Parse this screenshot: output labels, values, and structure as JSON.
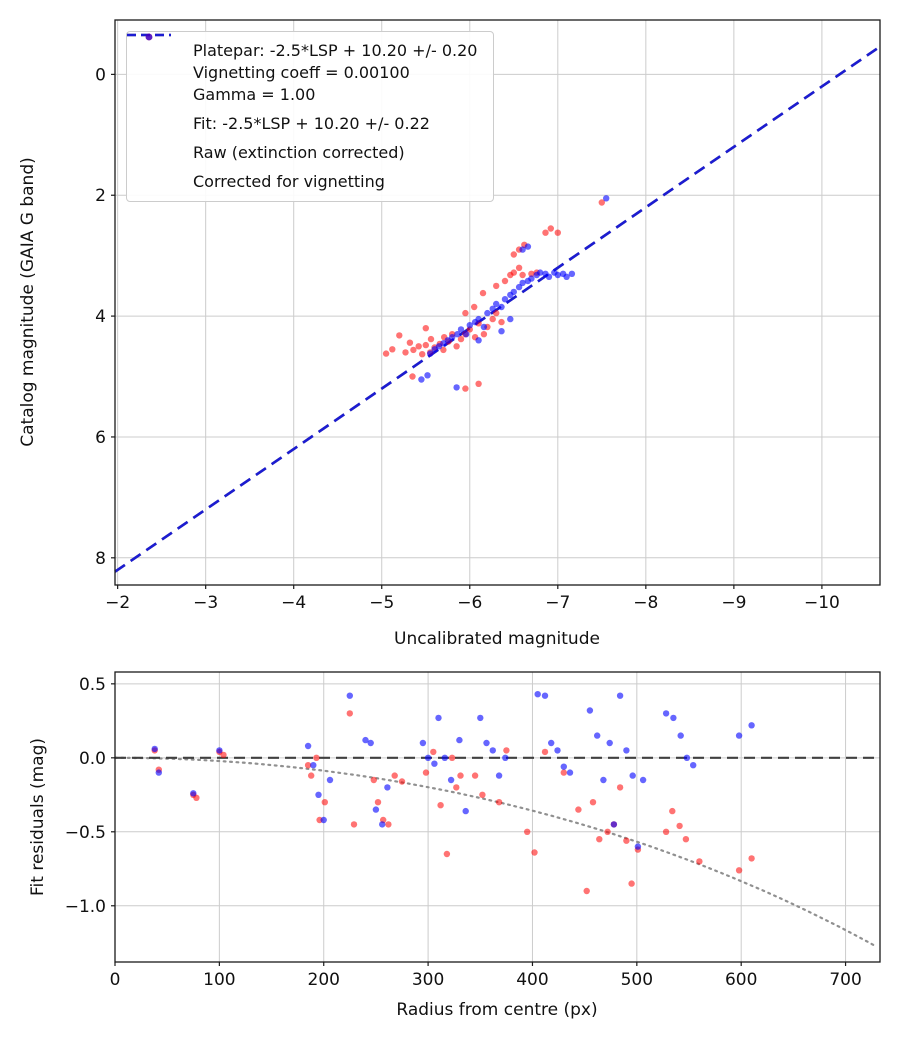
{
  "chart_data": [
    {
      "type": "scatter",
      "xlabel": "Uncalibrated magnitude",
      "ylabel": "Catalog magnitude (GAIA G band)",
      "xlim": [
        -1.97,
        -10.66
      ],
      "ylim": [
        -0.9,
        8.45
      ],
      "xticks": [
        -2,
        -3,
        -4,
        -5,
        -6,
        -7,
        -8,
        -9,
        -10
      ],
      "xtick_labels": [
        "−2",
        "−3",
        "−4",
        "−5",
        "−6",
        "−7",
        "−8",
        "−9",
        "−10"
      ],
      "yticks": [
        0,
        2,
        4,
        6,
        8
      ],
      "ytick_labels": [
        "0",
        "2",
        "4",
        "6",
        "8"
      ],
      "grid": true,
      "legend_position": "upper left",
      "platepar_line": {
        "slope": 1,
        "intercept": 10.2,
        "color": "#7f7f7f",
        "label_line1": "Platepar: -2.5*LSP + 10.20 +/- 0.20",
        "label_line2": "Vignetting coeff = 0.00100",
        "label_line3": "Gamma = 1.00"
      },
      "fit_line": {
        "slope": 1,
        "intercept": 10.2,
        "color": "#1c1cd1",
        "label": "Fit: -2.5*LSP + 10.20 +/- 0.22"
      },
      "series": [
        {
          "name": "Raw (extinction corrected)",
          "color": "#ff0000",
          "alpha": 0.55,
          "points": [
            [
              -5.05,
              4.62
            ],
            [
              -5.12,
              4.55
            ],
            [
              -5.2,
              4.32
            ],
            [
              -5.27,
              4.6
            ],
            [
              -5.32,
              4.44
            ],
            [
              -5.36,
              4.56
            ],
            [
              -5.42,
              4.5
            ],
            [
              -5.46,
              4.63
            ],
            [
              -5.5,
              4.48
            ],
            [
              -5.5,
              4.2
            ],
            [
              -5.55,
              4.6
            ],
            [
              -5.56,
              4.38
            ],
            [
              -5.6,
              4.52
            ],
            [
              -5.66,
              4.46
            ],
            [
              -5.7,
              4.56
            ],
            [
              -5.71,
              4.35
            ],
            [
              -5.76,
              4.42
            ],
            [
              -5.8,
              4.3
            ],
            [
              -5.85,
              4.5
            ],
            [
              -5.9,
              4.38
            ],
            [
              -5.35,
              5.0
            ],
            [
              -5.95,
              4.3
            ],
            [
              -6.0,
              4.22
            ],
            [
              -6.06,
              4.35
            ],
            [
              -6.1,
              4.12
            ],
            [
              -6.16,
              4.3
            ],
            [
              -5.95,
              3.95
            ],
            [
              -6.05,
              3.85
            ],
            [
              -6.2,
              4.18
            ],
            [
              -6.26,
              4.05
            ],
            [
              -6.3,
              3.95
            ],
            [
              -6.36,
              4.1
            ],
            [
              -6.15,
              3.62
            ],
            [
              -6.3,
              3.5
            ],
            [
              -6.4,
              3.42
            ],
            [
              -6.46,
              3.32
            ],
            [
              -6.5,
              3.28
            ],
            [
              -6.56,
              3.2
            ],
            [
              -6.6,
              3.32
            ],
            [
              -6.5,
              2.98
            ],
            [
              -6.56,
              2.9
            ],
            [
              -6.62,
              2.82
            ],
            [
              -6.7,
              3.3
            ],
            [
              -6.76,
              3.28
            ],
            [
              -6.86,
              2.62
            ],
            [
              -6.92,
              2.55
            ],
            [
              -7.0,
              2.62
            ],
            [
              -7.5,
              2.12
            ],
            [
              -5.95,
              5.2
            ],
            [
              -6.1,
              5.12
            ]
          ]
        },
        {
          "name": "Corrected for vignetting",
          "color": "#0000ff",
          "alpha": 0.6,
          "points": [
            [
              -5.45,
              5.05
            ],
            [
              -5.52,
              4.98
            ],
            [
              -5.55,
              4.62
            ],
            [
              -5.6,
              4.55
            ],
            [
              -5.65,
              4.5
            ],
            [
              -5.7,
              4.45
            ],
            [
              -5.75,
              4.4
            ],
            [
              -5.8,
              4.35
            ],
            [
              -5.86,
              4.3
            ],
            [
              -5.9,
              4.22
            ],
            [
              -5.96,
              4.3
            ],
            [
              -6.0,
              4.15
            ],
            [
              -6.06,
              4.1
            ],
            [
              -6.1,
              4.05
            ],
            [
              -6.16,
              4.18
            ],
            [
              -6.2,
              3.95
            ],
            [
              -6.26,
              3.88
            ],
            [
              -6.3,
              3.8
            ],
            [
              -6.36,
              3.85
            ],
            [
              -6.4,
              3.72
            ],
            [
              -6.46,
              3.65
            ],
            [
              -6.5,
              3.6
            ],
            [
              -6.56,
              3.52
            ],
            [
              -6.6,
              3.45
            ],
            [
              -6.6,
              2.9
            ],
            [
              -6.66,
              2.85
            ],
            [
              -6.66,
              3.42
            ],
            [
              -6.7,
              3.38
            ],
            [
              -6.76,
              3.32
            ],
            [
              -6.8,
              3.28
            ],
            [
              -6.86,
              3.3
            ],
            [
              -6.9,
              3.35
            ],
            [
              -6.96,
              3.28
            ],
            [
              -7.0,
              3.32
            ],
            [
              -7.06,
              3.3
            ],
            [
              -7.1,
              3.35
            ],
            [
              -7.16,
              3.3
            ],
            [
              -6.1,
              4.4
            ],
            [
              -5.85,
              5.18
            ],
            [
              -7.55,
              2.05
            ],
            [
              -6.36,
              4.25
            ],
            [
              -6.46,
              4.05
            ]
          ]
        }
      ]
    },
    {
      "type": "scatter",
      "xlabel": "Radius from centre (px)",
      "ylabel": "Fit residuals (mag)",
      "xlim": [
        0,
        733
      ],
      "ylim": [
        0.58,
        -1.38
      ],
      "xticks": [
        0,
        100,
        200,
        300,
        400,
        500,
        600,
        700
      ],
      "xtick_labels": [
        "0",
        "100",
        "200",
        "300",
        "400",
        "500",
        "600",
        "700"
      ],
      "yticks": [
        0.5,
        0.0,
        -0.5,
        -1.0
      ],
      "ytick_labels": [
        "0.5",
        "0.0",
        "−0.5",
        "−1.0"
      ],
      "grid": true,
      "zero_line": {
        "y": 0,
        "color": "#404040"
      },
      "vignetting_curve": {
        "coeff": 0.001,
        "color": "#909090"
      },
      "series": [
        {
          "name": "Raw (extinction corrected)",
          "color": "#ff0000",
          "alpha": 0.55,
          "points": [
            [
              38,
              0.05
            ],
            [
              42,
              -0.08
            ],
            [
              75,
              -0.25
            ],
            [
              78,
              -0.27
            ],
            [
              100,
              0.04
            ],
            [
              104,
              0.02
            ],
            [
              185,
              -0.05
            ],
            [
              188,
              -0.12
            ],
            [
              193,
              0.0
            ],
            [
              196,
              -0.42
            ],
            [
              201,
              -0.3
            ],
            [
              225,
              0.3
            ],
            [
              229,
              -0.45
            ],
            [
              248,
              -0.15
            ],
            [
              252,
              -0.3
            ],
            [
              257,
              -0.42
            ],
            [
              262,
              -0.45
            ],
            [
              268,
              -0.12
            ],
            [
              275,
              -0.16
            ],
            [
              298,
              -0.1
            ],
            [
              305,
              0.04
            ],
            [
              312,
              -0.32
            ],
            [
              318,
              -0.65
            ],
            [
              323,
              0.0
            ],
            [
              327,
              -0.2
            ],
            [
              331,
              -0.12
            ],
            [
              345,
              -0.12
            ],
            [
              352,
              -0.25
            ],
            [
              368,
              -0.3
            ],
            [
              375,
              0.05
            ],
            [
              395,
              -0.5
            ],
            [
              402,
              -0.64
            ],
            [
              412,
              0.04
            ],
            [
              430,
              -0.1
            ],
            [
              444,
              -0.35
            ],
            [
              452,
              -0.9
            ],
            [
              458,
              -0.3
            ],
            [
              464,
              -0.55
            ],
            [
              472,
              -0.5
            ],
            [
              478,
              -0.45
            ],
            [
              484,
              -0.2
            ],
            [
              490,
              -0.56
            ],
            [
              495,
              -0.85
            ],
            [
              501,
              -0.62
            ],
            [
              528,
              -0.5
            ],
            [
              534,
              -0.36
            ],
            [
              541,
              -0.46
            ],
            [
              547,
              -0.55
            ],
            [
              560,
              -0.7
            ],
            [
              598,
              -0.76
            ],
            [
              610,
              -0.68
            ]
          ]
        },
        {
          "name": "Corrected for vignetting",
          "color": "#0000ff",
          "alpha": 0.6,
          "points": [
            [
              38,
              0.06
            ],
            [
              42,
              -0.1
            ],
            [
              75,
              -0.24
            ],
            [
              100,
              0.05
            ],
            [
              185,
              0.08
            ],
            [
              190,
              -0.05
            ],
            [
              195,
              -0.25
            ],
            [
              200,
              -0.42
            ],
            [
              206,
              -0.15
            ],
            [
              225,
              0.42
            ],
            [
              240,
              0.12
            ],
            [
              245,
              0.1
            ],
            [
              250,
              -0.35
            ],
            [
              256,
              -0.45
            ],
            [
              261,
              -0.2
            ],
            [
              295,
              0.1
            ],
            [
              300,
              0.0
            ],
            [
              306,
              -0.04
            ],
            [
              310,
              0.27
            ],
            [
              316,
              0.0
            ],
            [
              322,
              -0.15
            ],
            [
              330,
              0.12
            ],
            [
              336,
              -0.36
            ],
            [
              350,
              0.27
            ],
            [
              356,
              0.1
            ],
            [
              362,
              0.05
            ],
            [
              368,
              -0.12
            ],
            [
              374,
              0.0
            ],
            [
              405,
              0.43
            ],
            [
              412,
              0.42
            ],
            [
              418,
              0.1
            ],
            [
              424,
              0.05
            ],
            [
              430,
              -0.06
            ],
            [
              436,
              -0.1
            ],
            [
              455,
              0.32
            ],
            [
              462,
              0.15
            ],
            [
              468,
              -0.15
            ],
            [
              474,
              0.1
            ],
            [
              478,
              -0.45
            ],
            [
              484,
              0.42
            ],
            [
              490,
              0.05
            ],
            [
              496,
              -0.12
            ],
            [
              501,
              -0.6
            ],
            [
              506,
              -0.15
            ],
            [
              528,
              0.3
            ],
            [
              535,
              0.27
            ],
            [
              542,
              0.15
            ],
            [
              548,
              0.0
            ],
            [
              554,
              -0.05
            ],
            [
              598,
              0.15
            ],
            [
              610,
              0.22
            ]
          ]
        }
      ]
    }
  ],
  "style": {
    "grid_color": "#cccccc",
    "spine_color": "#1a1a1a",
    "tick_label_color": "#111111"
  }
}
